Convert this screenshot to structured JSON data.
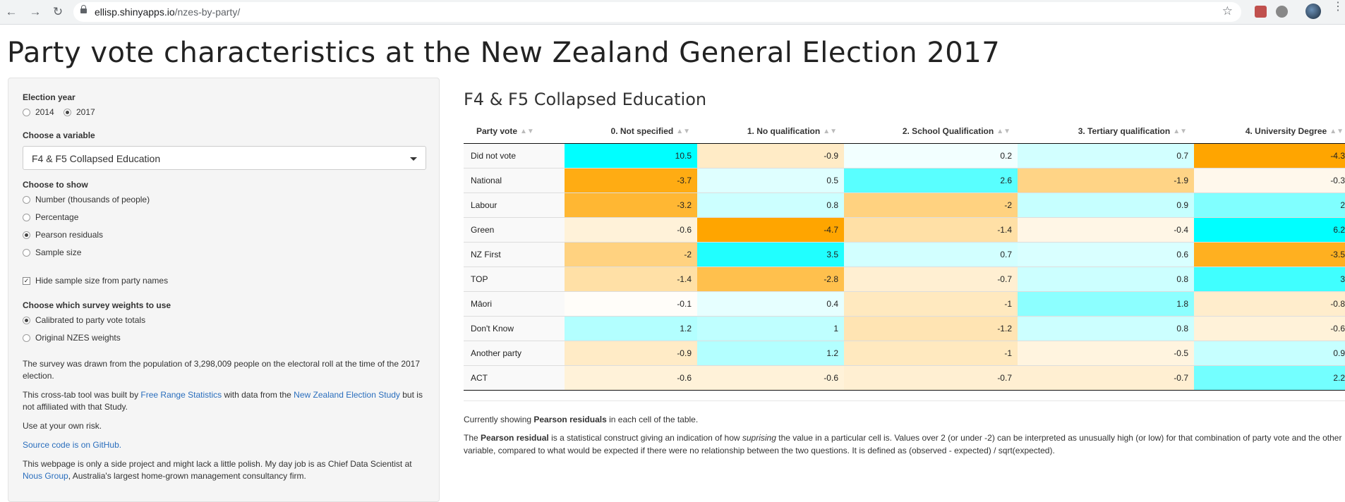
{
  "browser": {
    "url_host": "ellisp.shinyapps.io",
    "url_path": "/nzes-by-party/"
  },
  "page": {
    "title": "Party vote characteristics at the New Zealand General Election 2017"
  },
  "sidebar": {
    "election_year_label": "Election year",
    "years": [
      {
        "label": "2014",
        "selected": false
      },
      {
        "label": "2017",
        "selected": true
      }
    ],
    "variable_label": "Choose a variable",
    "variable_value": "F4 & F5 Collapsed Education",
    "show_label": "Choose to show",
    "show_options": [
      {
        "label": "Number (thousands of people)",
        "selected": false
      },
      {
        "label": "Percentage",
        "selected": false
      },
      {
        "label": "Pearson residuals",
        "selected": true
      },
      {
        "label": "Sample size",
        "selected": false
      }
    ],
    "hide_sample_label": "Hide sample size from party names",
    "hide_sample_checked": true,
    "weights_label": "Choose which survey weights to use",
    "weights_options": [
      {
        "label": "Calibrated to party vote totals",
        "selected": true
      },
      {
        "label": "Original NZES weights",
        "selected": false
      }
    ],
    "para_survey": "The survey was drawn from the population of 3,298,009 people on the electoral roll at the time of the 2017 election.",
    "para_tool_1": "This cross-tab tool was built by ",
    "link_frs": "Free Range Statistics",
    "para_tool_2": " with data from the ",
    "link_nzes": "New Zealand Election Study",
    "para_tool_3": " but is not affiliated with that Study.",
    "para_risk": "Use at your own risk.",
    "link_github": "Source code is on GitHub.",
    "para_side_1": "This webpage is only a side project and might lack a little polish. My day job is as Chief Data Scientist at ",
    "link_nous": "Nous Group",
    "para_side_2": ", Australia's largest home-grown management consultancy firm."
  },
  "main": {
    "heading": "F4 & F5 Collapsed Education",
    "columns": [
      "Party vote",
      "0. Not specified",
      "1. No qualification",
      "2. School Qualification",
      "3. Tertiary qualification",
      "4. University Degree"
    ],
    "rows": [
      {
        "party": "Did not vote",
        "values": [
          "10.5",
          "-0.9",
          "0.2",
          "0.7",
          "-4.3"
        ]
      },
      {
        "party": "National",
        "values": [
          "-3.7",
          "0.5",
          "2.6",
          "-1.9",
          "-0.3"
        ]
      },
      {
        "party": "Labour",
        "values": [
          "-3.2",
          "0.8",
          "-2",
          "0.9",
          "2"
        ]
      },
      {
        "party": "Green",
        "values": [
          "-0.6",
          "-4.7",
          "-1.4",
          "-0.4",
          "6.2"
        ]
      },
      {
        "party": "NZ First",
        "values": [
          "-2",
          "3.5",
          "0.7",
          "0.6",
          "-3.5"
        ]
      },
      {
        "party": "TOP",
        "values": [
          "-1.4",
          "-2.8",
          "-0.7",
          "0.8",
          "3"
        ]
      },
      {
        "party": "Māori",
        "values": [
          "-0.1",
          "0.4",
          "-1",
          "1.8",
          "-0.8"
        ]
      },
      {
        "party": "Don't Know",
        "values": [
          "1.2",
          "1",
          "-1.2",
          "0.8",
          "-0.6"
        ]
      },
      {
        "party": "Another party",
        "values": [
          "-0.9",
          "1.2",
          "-1",
          "-0.5",
          "0.9"
        ]
      },
      {
        "party": "ACT",
        "values": [
          "-0.6",
          "-0.6",
          "-0.7",
          "-0.7",
          "2.2"
        ]
      }
    ],
    "showing_1": "Currently showing ",
    "showing_bold": "Pearson residuals",
    "showing_2": " in each cell of the table.",
    "def_1": "The ",
    "def_bold": "Pearson residual",
    "def_2": " is a statistical construct giving an indication of how ",
    "def_em": "suprising",
    "def_3": " the value in a particular cell is. Values over 2 (or under -2) can be interpreted as unusually high (or low) for that combination of party vote and the other variable, compared to what would be expected if there were no relationship between the two questions. It is defined as (observed - expected) / sqrt(expected)."
  },
  "colors": {
    "positive": "#00FFFF",
    "negative": "#FFA500",
    "link": "#2a6ebd"
  }
}
